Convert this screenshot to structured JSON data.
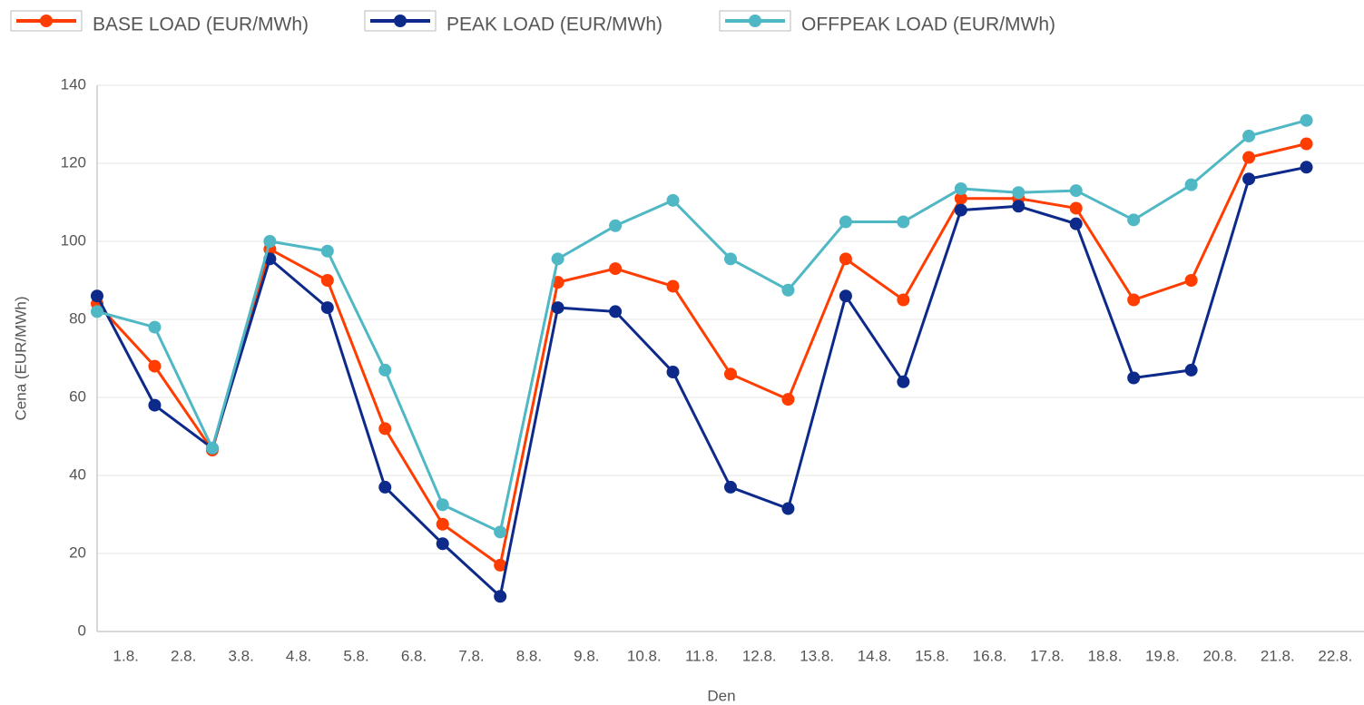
{
  "chart_data": {
    "type": "line",
    "categories": [
      "1.8.",
      "2.8.",
      "3.8.",
      "4.8.",
      "5.8.",
      "6.8.",
      "7.8.",
      "8.8.",
      "9.8.",
      "10.8.",
      "11.8.",
      "12.8.",
      "13.8.",
      "14.8.",
      "15.8.",
      "16.8.",
      "17.8.",
      "18.8.",
      "19.8.",
      "20.8.",
      "21.8.",
      "22.8."
    ],
    "series": [
      {
        "name": "BASE LOAD (EUR/MWh)",
        "color": "#ff3d00",
        "values": [
          84,
          68,
          46.5,
          98,
          90,
          52,
          27.5,
          17,
          89.5,
          93,
          88.5,
          66,
          59.5,
          95.5,
          85,
          111,
          111,
          108.5,
          85,
          90,
          121.5,
          125
        ]
      },
      {
        "name": "PEAK LOAD (EUR/MWh)",
        "color": "#0d2a8a",
        "values": [
          86,
          58,
          47,
          95.5,
          83,
          37,
          22.5,
          9,
          83,
          82,
          66.5,
          37,
          31.5,
          86,
          64,
          108,
          109,
          104.5,
          65,
          67,
          116,
          119
        ]
      },
      {
        "name": "OFFPEAK LOAD (EUR/MWh)",
        "color": "#4fb8c4",
        "values": [
          82,
          78,
          47,
          100,
          97.5,
          67,
          32.5,
          25.5,
          95.5,
          104,
          110.5,
          95.5,
          87.5,
          105,
          105,
          113.5,
          112.5,
          113,
          105.5,
          114.5,
          127,
          131
        ]
      }
    ],
    "x_label": "Den",
    "y_label": "Cena (EUR/MWh)",
    "ylim": [
      0,
      140
    ],
    "yticks": [
      0,
      20,
      40,
      60,
      80,
      100,
      120,
      140
    ],
    "grid": true,
    "legend": "top"
  }
}
